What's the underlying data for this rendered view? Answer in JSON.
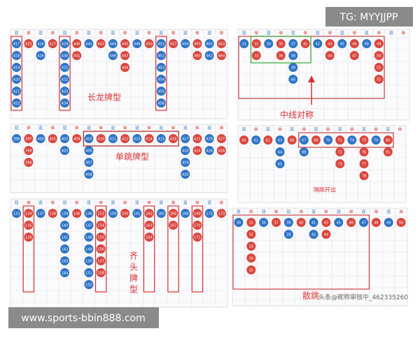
{
  "badge": "TG: MYYJJPP",
  "footer": "www.sports-bbin888.com",
  "watermark": "头条@昵称审核中_462335260",
  "colors": {
    "red": "#d9473f",
    "blue": "#2f74c6"
  },
  "panels": [
    {
      "note": "长龙牌型",
      "header": [
        "双",
        "单",
        "双",
        "单",
        "双",
        "单",
        "双",
        "单",
        "双",
        "单",
        "双",
        "单",
        "双",
        "单",
        "双",
        "单",
        "双",
        "单"
      ],
      "columns": [
        {
          "color": "blue",
          "balls": [
            "417",
            "418",
            "419",
            "420",
            "421",
            "422"
          ]
        },
        {
          "color": "red",
          "balls": [
            "423"
          ]
        },
        {
          "color": "blue",
          "balls": [
            "424",
            "426"
          ]
        },
        {
          "color": "red",
          "balls": [
            "427"
          ]
        },
        {
          "color": "blue",
          "balls": [
            "429",
            "430",
            "431",
            "432",
            "433",
            "434"
          ]
        },
        {
          "color": "red",
          "balls": [
            "440",
            "441"
          ]
        },
        {
          "color": "blue",
          "balls": [
            "442"
          ]
        },
        {
          "color": "red",
          "balls": [
            "443"
          ]
        },
        {
          "color": "blue",
          "balls": [
            "444",
            "446"
          ]
        },
        {
          "color": "red",
          "balls": [
            "445",
            "447",
            "449"
          ]
        },
        {
          "color": "blue",
          "balls": [
            "448"
          ]
        },
        {
          "color": "red",
          "balls": [
            "450"
          ]
        },
        {
          "color": "blue",
          "balls": [
            "451",
            "452",
            "453",
            "454",
            "455",
            "456"
          ]
        },
        {
          "color": "red",
          "balls": [
            "457"
          ]
        },
        {
          "color": "blue",
          "balls": [
            "458"
          ]
        },
        {
          "color": "red",
          "balls": [
            "459",
            "460"
          ]
        },
        {
          "color": "blue",
          "balls": [
            "461",
            "462"
          ]
        },
        {
          "color": "red",
          "balls": [
            "463",
            "464"
          ]
        }
      ]
    },
    {
      "note": "中线对称",
      "header": [
        "双",
        "单",
        "双",
        "单",
        "双",
        "单",
        "双",
        "单",
        "双",
        "单",
        "双",
        "单",
        "双",
        "单"
      ],
      "columns": [
        {
          "color": "blue",
          "balls": [
            "31"
          ]
        },
        {
          "color": "red",
          "balls": [
            "32",
            "33"
          ]
        },
        {
          "color": "blue",
          "balls": [
            "34"
          ]
        },
        {
          "color": "red",
          "balls": [
            "35",
            "36"
          ]
        },
        {
          "color": "blue",
          "balls": [
            "37",
            "38",
            "39",
            "40"
          ]
        },
        {
          "color": "red",
          "balls": [
            "41"
          ]
        },
        {
          "color": "blue",
          "balls": [
            "42"
          ]
        },
        {
          "color": "red",
          "balls": [
            "43",
            "44"
          ]
        },
        {
          "color": "blue",
          "balls": [
            "45"
          ]
        },
        {
          "color": "red",
          "balls": [
            "46",
            "47"
          ]
        },
        {
          "color": "blue",
          "balls": [
            "48"
          ]
        },
        {
          "color": "red",
          "balls": [
            "49",
            "50",
            "51",
            "52"
          ]
        }
      ]
    },
    {
      "note": "单跳牌型",
      "header": [
        "双",
        "单",
        "双",
        "单",
        "双",
        "单",
        "双",
        "单",
        "双",
        "单",
        "双",
        "单",
        "双",
        "单",
        "双",
        "单",
        "双",
        "单"
      ],
      "columns": [
        {
          "color": "blue",
          "balls": [
            "396"
          ]
        },
        {
          "color": "red",
          "balls": [
            "397",
            "398",
            "399"
          ]
        },
        {
          "color": "blue",
          "balls": [
            "400"
          ]
        },
        {
          "color": "red",
          "balls": [
            "401"
          ]
        },
        {
          "color": "blue",
          "balls": [
            "402",
            "403"
          ]
        },
        {
          "color": "red",
          "balls": [
            "404"
          ]
        },
        {
          "color": "blue",
          "balls": [
            "405",
            "406",
            "407",
            "408"
          ]
        },
        {
          "color": "red",
          "balls": [
            "410"
          ]
        },
        {
          "color": "blue",
          "balls": [
            "411"
          ]
        },
        {
          "color": "red",
          "balls": [
            "412"
          ]
        },
        {
          "color": "blue",
          "balls": [
            "413"
          ]
        },
        {
          "color": "red",
          "balls": [
            "414"
          ]
        },
        {
          "color": "blue",
          "balls": [
            "415"
          ]
        },
        {
          "color": "red",
          "balls": [
            "416"
          ]
        },
        {
          "color": "blue",
          "balls": [
            "417",
            "418",
            "419",
            "420"
          ]
        },
        {
          "color": "red",
          "balls": [
            "421",
            "424"
          ]
        },
        {
          "color": "blue",
          "balls": [
            "425",
            "426"
          ]
        },
        {
          "color": "red",
          "balls": [
            "427",
            "428"
          ]
        }
      ]
    },
    {
      "note": "隔跳开出",
      "header": [
        "双",
        "单",
        "双",
        "单",
        "双",
        "单",
        "双",
        "单",
        "双",
        "单",
        "双",
        "单",
        "双",
        "单"
      ],
      "columns": [
        {
          "color": "red",
          "balls": [
            "60"
          ]
        },
        {
          "color": "blue",
          "balls": [
            "61"
          ]
        },
        {
          "color": "red",
          "balls": [
            "62"
          ]
        },
        {
          "color": "blue",
          "balls": [
            "63",
            "64",
            "65"
          ]
        },
        {
          "color": "red",
          "balls": [
            "66"
          ]
        },
        {
          "color": "blue",
          "balls": [
            "67",
            "68"
          ]
        },
        {
          "color": "red",
          "balls": [
            "69"
          ]
        },
        {
          "color": "blue",
          "balls": [
            "70"
          ]
        },
        {
          "color": "red",
          "balls": [
            "71",
            "72",
            "73"
          ]
        },
        {
          "color": "blue",
          "balls": [
            "74"
          ]
        },
        {
          "color": "red",
          "balls": [
            "75",
            "76",
            "77",
            "78"
          ]
        },
        {
          "color": "blue",
          "balls": [
            "79"
          ]
        },
        {
          "color": "red",
          "balls": [
            "80",
            "81"
          ]
        }
      ]
    },
    {
      "note": "齐头牌型",
      "header": [
        "双",
        "单",
        "双",
        "单",
        "双",
        "单",
        "双",
        "单",
        "双",
        "单",
        "双",
        "单",
        "双",
        "单",
        "双",
        "单",
        "双",
        "单"
      ],
      "columns": [
        {
          "color": "blue",
          "balls": [
            "133"
          ]
        },
        {
          "color": "red",
          "balls": [
            "134",
            "135",
            "136"
          ]
        },
        {
          "color": "blue",
          "balls": [
            "137"
          ]
        },
        {
          "color": "red",
          "balls": [
            "138"
          ]
        },
        {
          "color": "blue",
          "balls": [
            "139",
            "140",
            "141",
            "142",
            "143",
            "144"
          ]
        },
        {
          "color": "red",
          "balls": [
            "145"
          ]
        },
        {
          "color": "blue",
          "balls": [
            "146",
            "147",
            "148",
            "149",
            "150",
            "151",
            "152"
          ]
        },
        {
          "color": "red",
          "balls": [
            "153",
            "154",
            "155",
            "156",
            "157",
            "158"
          ]
        },
        {
          "color": "blue",
          "balls": [
            "159"
          ]
        },
        {
          "color": "red",
          "balls": [
            "160"
          ]
        },
        {
          "color": "blue",
          "balls": [
            "161"
          ]
        },
        {
          "color": "red",
          "balls": [
            "162",
            "163",
            "164"
          ]
        },
        {
          "color": "blue",
          "balls": [
            "165"
          ]
        },
        {
          "color": "red",
          "balls": [
            "166",
            "167"
          ]
        },
        {
          "color": "blue",
          "balls": [
            "168"
          ]
        },
        {
          "color": "red",
          "balls": [
            "169",
            "170",
            "171"
          ]
        },
        {
          "color": "blue",
          "balls": [
            "172"
          ]
        },
        {
          "color": "red",
          "balls": [
            "173"
          ]
        }
      ]
    },
    {
      "note": "散跳",
      "header": [
        "双",
        "单",
        "双",
        "单",
        "双",
        "单",
        "双",
        "单",
        "双",
        "单",
        "双",
        "单",
        "双",
        "单"
      ],
      "columns": [
        {
          "color": "blue",
          "balls": [
            "30"
          ]
        },
        {
          "color": "red",
          "balls": [
            "31",
            "32",
            "33",
            "34",
            "35"
          ]
        },
        {
          "color": "blue",
          "balls": [
            "36"
          ]
        },
        {
          "color": "red",
          "balls": [
            "37"
          ]
        },
        {
          "color": "blue",
          "balls": [
            "38",
            "39"
          ]
        },
        {
          "color": "red",
          "balls": [
            "40"
          ]
        },
        {
          "color": "blue",
          "balls": [
            "41",
            "42"
          ]
        },
        {
          "color": "red",
          "balls": [
            "43",
            "44"
          ]
        },
        {
          "color": "blue",
          "balls": [
            "45"
          ]
        },
        {
          "color": "red",
          "balls": [
            "46"
          ]
        },
        {
          "color": "blue",
          "balls": [
            "47"
          ]
        },
        {
          "color": "red",
          "balls": [
            "48"
          ]
        },
        {
          "color": "blue",
          "balls": [
            "49"
          ]
        },
        {
          "color": "red",
          "balls": [
            "50"
          ]
        }
      ]
    }
  ]
}
